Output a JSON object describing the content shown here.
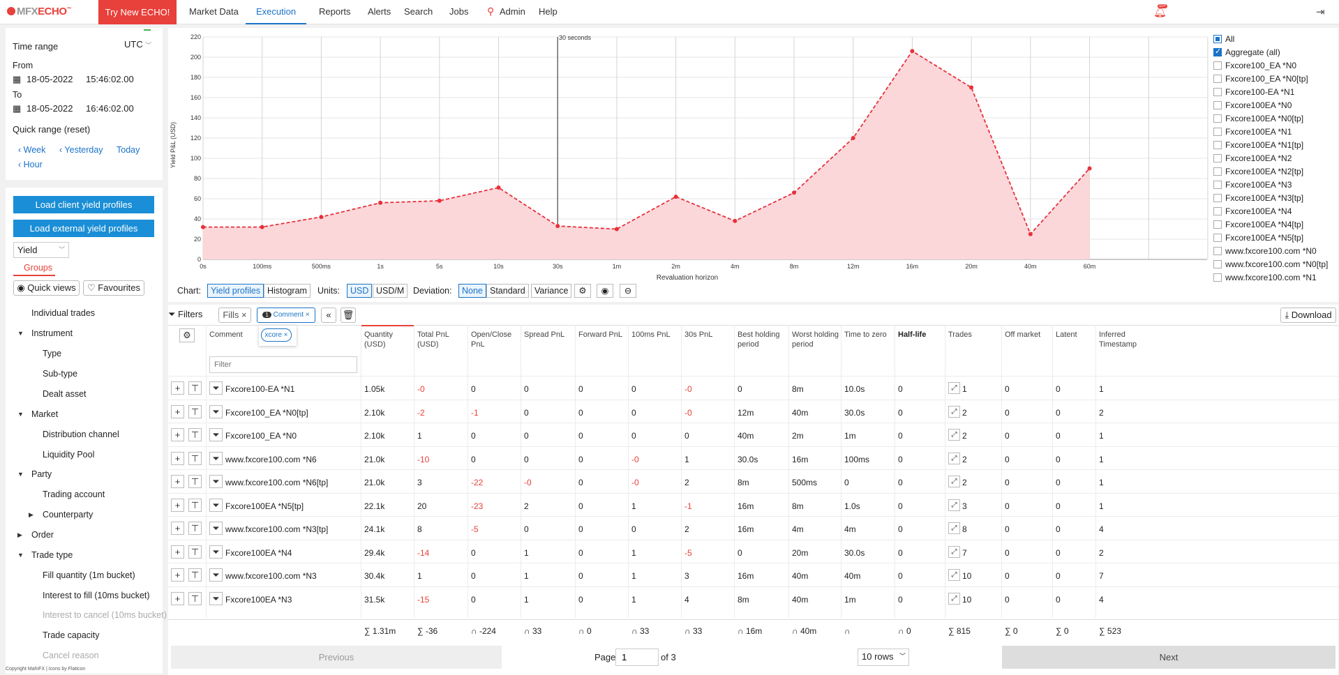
{
  "brand": {
    "mfx": "MFX",
    "echo": "ECHO",
    "tm": "™"
  },
  "header": {
    "try_new": "Try New ECHO!",
    "nav": [
      "Market Data",
      "Execution",
      "Reports",
      "Alerts",
      "Search",
      "Jobs",
      "Admin",
      "Help"
    ],
    "active": "Execution",
    "notif_badge": "10+"
  },
  "timerange": {
    "title": "Time range",
    "tz": "UTC",
    "from_label": "From",
    "from_date": "18-05-2022",
    "from_time": "15:46:02.00",
    "to_label": "To",
    "to_date": "18-05-2022",
    "to_time": "16:46:02.00",
    "quick": "Quick range (reset)",
    "week": "Week",
    "yesterday": "Yesterday",
    "today": "Today",
    "hour": "Hour"
  },
  "groups": {
    "load_client": "Load client yield profiles",
    "load_external": "Load external yield profiles",
    "metric": "Yield",
    "groups_tab": "Groups",
    "quick_views": "Quick views",
    "favourites": "Favourites",
    "tree": [
      "Individual trades",
      "Instrument",
      "Type",
      "Sub-type",
      "Dealt asset",
      "Market",
      "Distribution channel",
      "Liquidity Pool",
      "Party",
      "Trading account",
      "Counterparty",
      "Order",
      "Trade type",
      "Fill quantity (1m bucket)",
      "Interest to fill (10ms bucket)",
      "Interest to cancel (10ms bucket)",
      "Trade capacity",
      "Cancel reason"
    ]
  },
  "copyright": "Copyright MahiFX | Icons by Flaticon",
  "chart_data": {
    "type": "area",
    "ylabel": "Yield P&L (USD)",
    "xlabel": "Revaluation horizon",
    "categories": [
      "0s",
      "100ms",
      "500ms",
      "1s",
      "5s",
      "10s",
      "30s",
      "1m",
      "2m",
      "4m",
      "8m",
      "12m",
      "16m",
      "20m",
      "40m",
      "60m"
    ],
    "series": [
      {
        "name": "Aggregate (all)",
        "values": [
          32,
          32,
          42,
          56,
          58,
          71,
          33,
          30,
          62,
          38,
          66,
          120,
          206,
          170,
          25,
          90
        ]
      }
    ],
    "ylim": [
      0,
      220
    ],
    "yticks": [
      0,
      20,
      40,
      60,
      80,
      100,
      120,
      140,
      160,
      180,
      200,
      220
    ],
    "marker_label": "30 seconds",
    "color": "#e8303a",
    "fill": "#fbd7da"
  },
  "legend": [
    "All",
    "Aggregate (all)",
    "Fxcore100_EA *N0",
    "Fxcore100_EA *N0[tp]",
    "Fxcore100-EA *N1",
    "Fxcore100EA *N0",
    "Fxcore100EA *N0[tp]",
    "Fxcore100EA *N1",
    "Fxcore100EA *N1[tp]",
    "Fxcore100EA *N2",
    "Fxcore100EA *N2[tp]",
    "Fxcore100EA *N3",
    "Fxcore100EA *N3[tp]",
    "Fxcore100EA *N4",
    "Fxcore100EA *N4[tp]",
    "Fxcore100EA *N5[tp]",
    "www.fxcore100.com *N0",
    "www.fxcore100.com *N0[tp]",
    "www.fxcore100.com *N1"
  ],
  "toolbar": {
    "chart": "Chart:",
    "yield_profiles": "Yield profiles",
    "histogram": "Histogram",
    "units": "Units:",
    "usd": "USD",
    "usdm": "USD/M",
    "deviation": "Deviation:",
    "none": "None",
    "standard": "Standard",
    "variance": "Variance"
  },
  "filters": {
    "filters": "Filters",
    "fills": "Fills",
    "comment_chip": "Comment",
    "chip_count": "1",
    "xcore": "xcore",
    "download": "Download",
    "filter_placeholder": "Filter"
  },
  "columns": [
    "Comment",
    "Quantity (USD)",
    "Total PnL (USD)",
    "Open/Close PnL",
    "Spread PnL",
    "Forward PnL",
    "100ms PnL",
    "30s PnL",
    "Best holding period",
    "Worst holding period",
    "Time to zero",
    "Half-life",
    "Trades",
    "Off market",
    "Latent",
    "Inferred Timestamp"
  ],
  "rows": [
    [
      "Fxcore100-EA *N1",
      "1.05k",
      "-0",
      "0",
      "0",
      "0",
      "0",
      "-0",
      "0",
      "8m",
      "10.0s",
      "0",
      "1",
      "0",
      "0",
      "1"
    ],
    [
      "Fxcore100_EA *N0[tp]",
      "2.10k",
      "-2",
      "-1",
      "0",
      "0",
      "0",
      "-0",
      "12m",
      "40m",
      "30.0s",
      "0",
      "2",
      "0",
      "0",
      "2"
    ],
    [
      "Fxcore100_EA *N0",
      "2.10k",
      "1",
      "0",
      "0",
      "0",
      "0",
      "0",
      "40m",
      "2m",
      "1m",
      "0",
      "2",
      "0",
      "0",
      "1"
    ],
    [
      "www.fxcore100.com *N6",
      "21.0k",
      "-10",
      "0",
      "0",
      "0",
      "-0",
      "1",
      "30.0s",
      "16m",
      "100ms",
      "0",
      "2",
      "0",
      "0",
      "1"
    ],
    [
      "www.fxcore100.com *N6[tp]",
      "21.0k",
      "3",
      "-22",
      "-0",
      "0",
      "-0",
      "2",
      "8m",
      "500ms",
      "0",
      "0",
      "2",
      "0",
      "0",
      "1"
    ],
    [
      "Fxcore100EA *N5[tp]",
      "22.1k",
      "20",
      "-23",
      "2",
      "0",
      "1",
      "-1",
      "16m",
      "8m",
      "1.0s",
      "0",
      "3",
      "0",
      "0",
      "1"
    ],
    [
      "www.fxcore100.com *N3[tp]",
      "24.1k",
      "8",
      "-5",
      "0",
      "0",
      "0",
      "2",
      "16m",
      "4m",
      "4m",
      "0",
      "8",
      "0",
      "0",
      "4"
    ],
    [
      "Fxcore100EA *N4",
      "29.4k",
      "-14",
      "0",
      "1",
      "0",
      "1",
      "-5",
      "0",
      "20m",
      "30.0s",
      "0",
      "7",
      "0",
      "0",
      "2"
    ],
    [
      "www.fxcore100.com *N3",
      "30.4k",
      "1",
      "0",
      "1",
      "0",
      "1",
      "3",
      "16m",
      "40m",
      "40m",
      "0",
      "10",
      "0",
      "0",
      "7"
    ],
    [
      "Fxcore100EA *N3",
      "31.5k",
      "-15",
      "0",
      "1",
      "0",
      "1",
      "4",
      "8m",
      "40m",
      "1m",
      "0",
      "10",
      "0",
      "0",
      "4"
    ]
  ],
  "totals": [
    "∑ 1.31m",
    "∑ -36",
    "∩ -224",
    "∩ 33",
    "∩ 0",
    "∩ 33",
    "∩ 33",
    "∩ 16m",
    "∩ 40m",
    "∩",
    "∩ 0",
    "∑ 815",
    "∑ 0",
    "∑ 0",
    "∑ 523"
  ],
  "pagination": {
    "previous": "Previous",
    "page": "Page",
    "current": "1",
    "of": "of 3",
    "rows": "10 rows",
    "next": "Next"
  }
}
